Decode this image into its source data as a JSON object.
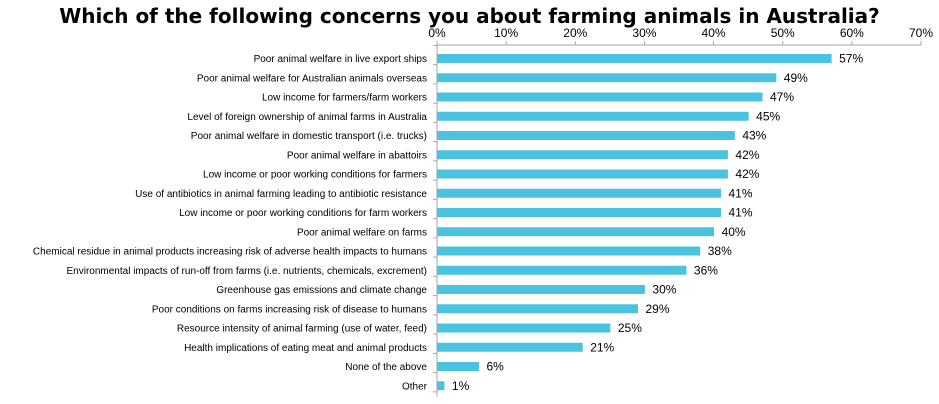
{
  "chart_data": {
    "type": "bar",
    "orientation": "horizontal",
    "title": "Which of the following concerns you about farming animals in Australia?",
    "xlim": [
      0,
      70
    ],
    "x_ticks": [
      "0%",
      "10%",
      "20%",
      "30%",
      "40%",
      "50%",
      "60%",
      "70%"
    ],
    "grid": false,
    "bar_color": "#4BC3DE",
    "axis_color": "#A6A6A6",
    "categories": [
      "Poor animal welfare in live export ships",
      "Poor animal welfare for Australian animals overseas",
      "Low income for farmers/farm workers",
      "Level of foreign ownership of animal farms in Australia",
      "Poor animal welfare in domestic transport (i.e. trucks)",
      "Poor animal welfare in abattoirs",
      "Low income or poor working conditions for farmers",
      "Use of antibiotics in animal farming leading to antibiotic resistance",
      "Low income or poor working conditions for farm workers",
      "Poor animal welfare on farms",
      "Chemical residue in animal products increasing risk of adverse health impacts to humans",
      "Environmental impacts of run-off from farms (i.e. nutrients, chemicals, excrement)",
      "Greenhouse gas emissions and climate change",
      "Poor conditions on farms increasing risk of disease to humans",
      "Resource intensity of animal farming (use of water, feed)",
      "Health implications of eating meat and animal products",
      "None of the above",
      "Other"
    ],
    "values": [
      57,
      49,
      47,
      45,
      43,
      42,
      42,
      41,
      41,
      40,
      38,
      36,
      30,
      29,
      25,
      21,
      6,
      1
    ],
    "value_labels": [
      "57%",
      "49%",
      "47%",
      "45%",
      "43%",
      "42%",
      "42%",
      "41%",
      "41%",
      "40%",
      "38%",
      "36%",
      "30%",
      "29%",
      "25%",
      "21%",
      "6%",
      "1%"
    ]
  }
}
